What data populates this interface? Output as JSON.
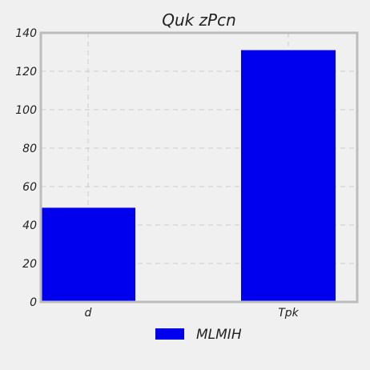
{
  "chart_data": {
    "type": "bar",
    "title": "Quk  zPcn",
    "xlabel": "",
    "ylabel": "",
    "categories": [
      "d",
      "Tpk"
    ],
    "series": [
      {
        "name": "MLMIH",
        "values": [
          49,
          131
        ],
        "color": "#0000ee"
      }
    ],
    "ylim": [
      0,
      140
    ],
    "yticks": [
      0,
      20,
      40,
      60,
      80,
      100,
      120,
      140
    ],
    "grid": true,
    "legend_position": "bottom-center"
  },
  "colors": {
    "background": "#f0f0f0",
    "plot_background": "#f0f0f0",
    "frame": "#bcbcbc",
    "grid": "#cbcbcb",
    "bar": "#0000ee"
  }
}
